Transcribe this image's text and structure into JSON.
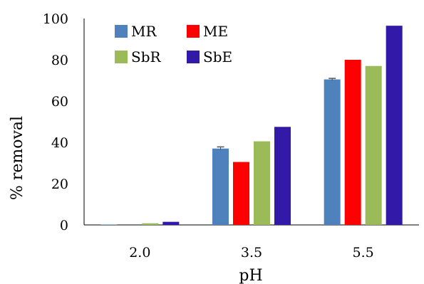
{
  "chart_data": {
    "type": "bar",
    "title": "",
    "xlabel": "pH",
    "ylabel": "% removal",
    "categories": [
      "2.0",
      "3.5",
      "5.5"
    ],
    "ylim": [
      0,
      100
    ],
    "yticks": [
      0,
      20,
      40,
      60,
      80,
      100
    ],
    "grid": false,
    "legend": "top-left",
    "series": [
      {
        "name": "MR",
        "color": "#4f81bd",
        "values": [
          0.2,
          37,
          70.5
        ],
        "errors": [
          0,
          0.8,
          0.5
        ]
      },
      {
        "name": "ME",
        "color": "#ff0000",
        "values": [
          0,
          30.5,
          80
        ],
        "errors": [
          0,
          0,
          0
        ]
      },
      {
        "name": "SbR",
        "color": "#9bbb59",
        "values": [
          0.8,
          40.5,
          77
        ],
        "errors": [
          0,
          0,
          0
        ]
      },
      {
        "name": "SbE",
        "color": "#3219a8",
        "values": [
          1.5,
          47.5,
          96.5
        ],
        "errors": [
          0,
          0,
          0
        ]
      }
    ]
  }
}
